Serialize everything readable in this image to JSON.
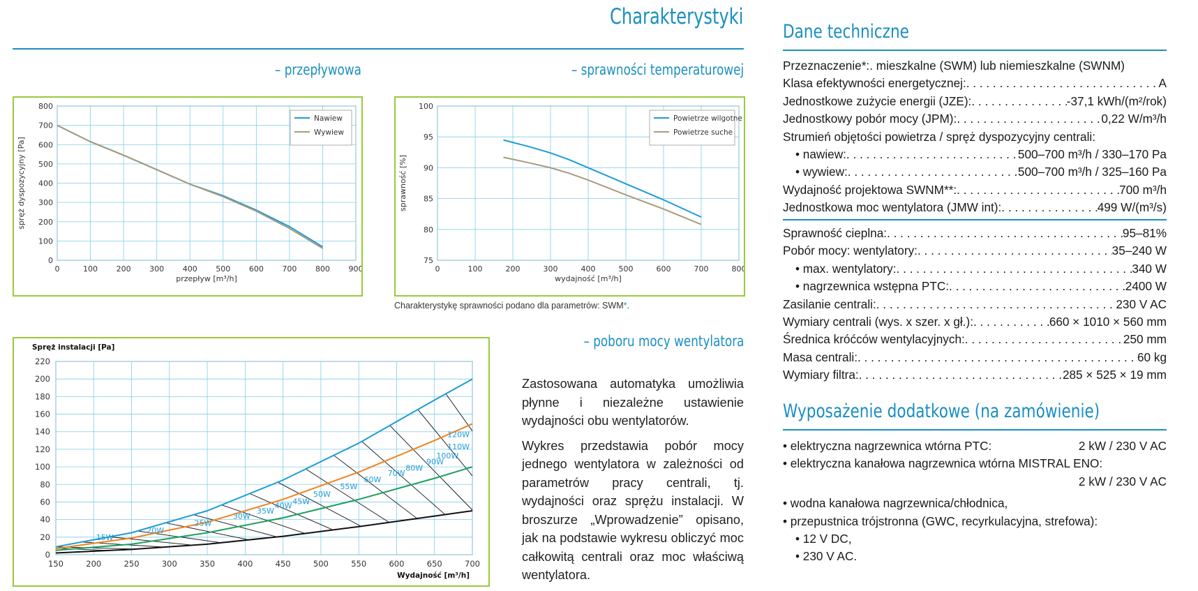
{
  "left": {
    "title": "Charakterystyki",
    "flow_heading": "– przepływowa",
    "eff_heading": "– sprawności temperaturowej",
    "eff_note_text": "Charakterystykę sprawności podano dla parametrów: SWM",
    "eff_note_star": "*",
    "eff_note_end": ".",
    "power_heading": "– poboru mocy wentylatora",
    "paragraph1": "Zastosowana automatyka umożliwia płynne i niezależne ustawienie wydajności obu wentylatorów.",
    "paragraph2": "Wykres przedstawia pobór mocy jednego wentylatora w zależności od parametrów pracy centrali, tj. wydajności oraz sprężu instalacji. W broszurze „Wprowadzenie” opisano, jak na podstawie wykresu obliczyć moc całkowitą centrali oraz moc właściwą wentylatora."
  },
  "right": {
    "tech_title": "Dane techniczne",
    "specs1": [
      {
        "label": "Przeznaczenie*:",
        "value": " .  mieszkalne (SWM) lub niemieszkalne (SWNM)",
        "plain": true
      },
      {
        "label": "Klasa efektywności energetycznej:",
        "value": "A"
      },
      {
        "label": "Jednostkowe zużycie energii (JZE):",
        "value": "-37,1 kWh/(m²/rok)"
      },
      {
        "label": "Jednostkowy pobór mocy (JPM):",
        "value": "0,22 W/m³/h"
      },
      {
        "label": "Strumień objętości powietrza / spręż dyspozycyjny centrali:",
        "value": "",
        "plain": true
      },
      {
        "label": "• nawiew:",
        "value": "500–700 m³/h / 330–170 Pa",
        "indent": true
      },
      {
        "label": "• wywiew:",
        "value": "500–700 m³/h / 325–160 Pa",
        "indent": true
      },
      {
        "label": "Wydajność projektowa SWNM**:",
        "value": "700 m³/h"
      },
      {
        "label": "Jednostkowa moc wentylatora (JMW int):",
        "value": "499 W/(m³/s)"
      }
    ],
    "specs2": [
      {
        "label": "Sprawność cieplna:",
        "value": "95–81%"
      },
      {
        "label": "Pobór mocy: wentylatory:",
        "value": "35–240 W"
      },
      {
        "label": "• max. wentylatory:",
        "value": "340 W",
        "indent": true
      },
      {
        "label": "• nagrzewnica wstępna PTC:",
        "value": "2400 W",
        "indent": true
      },
      {
        "label": "Zasilanie centrali:",
        "value": "230 V AC"
      },
      {
        "label": "Wymiary centrali (wys. x szer. x gł.):",
        "value": "660 × 1010 × 560 mm"
      },
      {
        "label": "Średnica króćców wentylacyjnych:",
        "value": "250 mm"
      },
      {
        "label": "Masa centrali:",
        "value": "60 kg"
      },
      {
        "label": "Wymiary filtra:",
        "value": "285 × 525 × 19 mm"
      }
    ],
    "equip_title": "Wyposażenie dodatkowe (na zamówienie)",
    "equip": [
      {
        "text": "• elektryczna nagrzewnica wtórna PTC:",
        "value": "2 kW / 230 V AC"
      },
      {
        "text": "• elektryczna kanałowa nagrzewnica wtórna MISTRAL ENO:",
        "value": ""
      },
      {
        "text": "",
        "value": "2 kW / 230 V AC"
      },
      {
        "text": "• wodna kanałowa nagrzewnica/chłodnica,",
        "value": "",
        "gap": true
      },
      {
        "text": "• przepustnica trójstronna (GWC, recyrkulacyjna, strefowa):",
        "value": ""
      },
      {
        "text": "• 12 V DC,",
        "value": "",
        "indent": true
      },
      {
        "text": "• 230 V AC.",
        "value": "",
        "indent": true
      }
    ]
  },
  "chart_data": [
    {
      "type": "line",
      "xlabel": "przepływ [m³/h]",
      "ylabel": "spręż dyspozycyjny [Pa]",
      "xlim": [
        0,
        900
      ],
      "ylim": [
        0,
        800
      ],
      "xticks": [
        0,
        100,
        200,
        300,
        400,
        500,
        600,
        700,
        800,
        900
      ],
      "yticks": [
        0,
        100,
        200,
        300,
        400,
        500,
        600,
        700,
        800
      ],
      "grid": true,
      "legend": "top-right",
      "series": [
        {
          "name": "Nawiew",
          "color": "#1e9bd7",
          "x": [
            0,
            100,
            200,
            300,
            400,
            500,
            600,
            700,
            800
          ],
          "y": [
            700,
            615,
            545,
            470,
            395,
            335,
            260,
            175,
            70
          ]
        },
        {
          "name": "Wywiew",
          "color": "#a89a7c",
          "x": [
            0,
            100,
            200,
            300,
            400,
            500,
            600,
            700,
            800
          ],
          "y": [
            700,
            615,
            545,
            470,
            395,
            330,
            255,
            165,
            62
          ]
        }
      ]
    },
    {
      "type": "line",
      "xlabel": "wydajność [m³/h]",
      "ylabel": "sprawność [%]",
      "xlim": [
        0,
        800
      ],
      "ylim": [
        75,
        100
      ],
      "xticks": [
        0,
        100,
        200,
        300,
        400,
        500,
        600,
        700,
        800
      ],
      "yticks": [
        75,
        80,
        85,
        90,
        95,
        100
      ],
      "grid": true,
      "legend": "top-right",
      "series": [
        {
          "name": "Powietrze wilgotne",
          "color": "#1e9bd7",
          "x": [
            175,
            250,
            300,
            350,
            400,
            500,
            600,
            700
          ],
          "y": [
            94.5,
            93.3,
            92.4,
            91.3,
            90,
            87.4,
            84.8,
            82
          ]
        },
        {
          "name": "Powietrze suche",
          "color": "#a89a7c",
          "x": [
            175,
            250,
            300,
            350,
            400,
            500,
            600,
            700
          ],
          "y": [
            91.7,
            90.7,
            90,
            89.1,
            88,
            85.6,
            83.3,
            80.8
          ]
        }
      ]
    },
    {
      "type": "line",
      "title": "Spręż instalacji [Pa]",
      "xlabel": "Wydajność [m³/h]",
      "xlim": [
        150,
        700
      ],
      "ylim": [
        0,
        220
      ],
      "xticks": [
        150,
        200,
        250,
        300,
        350,
        400,
        450,
        500,
        550,
        600,
        650,
        700
      ],
      "yticks": [
        0,
        20,
        40,
        60,
        80,
        100,
        120,
        140,
        160,
        180,
        200,
        220
      ],
      "grid": true,
      "series": [
        {
          "color": "#1e9bd7",
          "x": [
            150,
            250,
            350,
            450,
            550,
            650,
            700
          ],
          "y": [
            9,
            25,
            50,
            85,
            127,
            176,
            200
          ]
        },
        {
          "color": "#f0821e",
          "x": [
            150,
            250,
            350,
            450,
            550,
            650,
            700
          ],
          "y": [
            7,
            19,
            37,
            63,
            94,
            130,
            149
          ]
        },
        {
          "color": "#1aa05a",
          "x": [
            150,
            250,
            350,
            450,
            550,
            650,
            700
          ],
          "y": [
            5,
            12,
            25,
            42,
            63,
            87,
            100
          ]
        },
        {
          "color": "#111111",
          "x": [
            150,
            250,
            350,
            450,
            550,
            650,
            700
          ],
          "y": [
            2,
            6,
            12,
            21,
            32,
            44,
            50
          ]
        }
      ],
      "power_labels": [
        "15W",
        "20W",
        "25W",
        "30W",
        "35W",
        "40W",
        "45W",
        "50W",
        "55W",
        "60W",
        "70W",
        "80W",
        "90W",
        "100W",
        "110W",
        "120W"
      ],
      "power_label_pos": [
        [
          200,
          12
        ],
        [
          285,
          20
        ],
        [
          365,
          28
        ],
        [
          430,
          36
        ],
        [
          470,
          42
        ],
        [
          500,
          48
        ],
        [
          530,
          53
        ],
        [
          565,
          61
        ],
        [
          610,
          70
        ],
        [
          650,
          78
        ],
        [
          690,
          85
        ],
        [
          720,
          91
        ],
        [
          755,
          98
        ],
        [
          780,
          105
        ],
        [
          800,
          115
        ],
        [
          810,
          129
        ]
      ]
    }
  ]
}
